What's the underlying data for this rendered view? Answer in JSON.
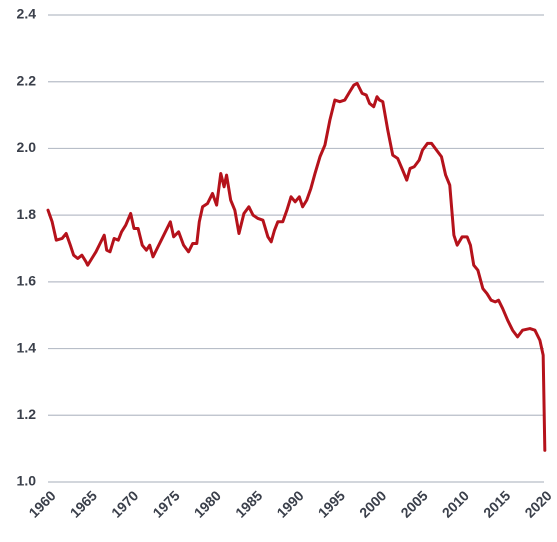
{
  "chart_data": {
    "type": "line",
    "color": "#b5121b",
    "grid": true,
    "xlim": [
      1960,
      2020
    ],
    "xticks": [
      1960,
      1965,
      1970,
      1975,
      1980,
      1985,
      1990,
      1995,
      2000,
      2005,
      2010,
      2015,
      2020
    ],
    "ylim": [
      1.0,
      2.4
    ],
    "yticks": [
      {
        "value": 1.0,
        "label": "1.0"
      },
      1.2,
      1.4,
      1.6,
      1.8,
      {
        "value": 2.0,
        "label": "2.0"
      },
      2.2,
      2.4
    ],
    "x": [
      1960,
      1960.5,
      1961,
      1961.7,
      1962.2,
      1962.7,
      1963.1,
      1963.6,
      1964.1,
      1964.6,
      1964.8,
      1965.3,
      1965.8,
      1966.3,
      1966.8,
      1967.1,
      1967.5,
      1968.0,
      1968.5,
      1968.9,
      1969.4,
      1970,
      1970.4,
      1970.9,
      1971.4,
      1971.9,
      1972.3,
      1972.7,
      1973.2,
      1973.7,
      1974.2,
      1974.8,
      1975.2,
      1975.8,
      1976.4,
      1977,
      1977.5,
      1978.0,
      1978.3,
      1978.7,
      1979.3,
      1979.9,
      1980.4,
      1980.9,
      1981.3,
      1981.6,
      1982.1,
      1982.6,
      1983.1,
      1983.7,
      1984.3,
      1984.8,
      1985.4,
      1986,
      1986.6,
      1987.0,
      1987.4,
      1987.8,
      1988.4,
      1988.9,
      1989.4,
      1989.9,
      1990.4,
      1990.8,
      1991.3,
      1991.8,
      1992.3,
      1992.9,
      1993.5,
      1994.1,
      1994.7,
      1995.3,
      1995.9,
      1996.5,
      1997.0,
      1997.4,
      1998,
      1998.5,
      1998.9,
      1999.4,
      1999.8,
      2000.1,
      2000.5,
      2001.1,
      2001.7,
      2002.3,
      2002.9,
      2003.4,
      2003.8,
      2004.3,
      2004.9,
      2005.3,
      2005.9,
      2006.4,
      2007,
      2007.6,
      2008.1,
      2008.6,
      2009.1,
      2009.5,
      2010.1,
      2010.7,
      2011.1,
      2011.5,
      2012.0,
      2012.6,
      2013.1,
      2013.6,
      2014.1,
      2014.5,
      2015,
      2015.6,
      2016.2,
      2016.8,
      2017.4,
      2018.3,
      2018.9,
      2019.5,
      2019.9,
      2020.1
    ],
    "values": [
      1.815,
      1.78,
      1.725,
      1.73,
      1.745,
      1.71,
      1.68,
      1.67,
      1.68,
      1.66,
      1.65,
      1.67,
      1.69,
      1.715,
      1.74,
      1.695,
      1.69,
      1.73,
      1.725,
      1.75,
      1.77,
      1.805,
      1.76,
      1.76,
      1.71,
      1.695,
      1.71,
      1.675,
      1.7,
      1.725,
      1.75,
      1.78,
      1.735,
      1.75,
      1.71,
      1.69,
      1.715,
      1.715,
      1.78,
      1.825,
      1.835,
      1.865,
      1.83,
      1.925,
      1.885,
      1.92,
      1.845,
      1.815,
      1.745,
      1.805,
      1.825,
      1.8,
      1.79,
      1.785,
      1.735,
      1.72,
      1.755,
      1.78,
      1.78,
      1.815,
      1.855,
      1.84,
      1.855,
      1.825,
      1.845,
      1.88,
      1.925,
      1.975,
      2.01,
      2.085,
      2.145,
      2.14,
      2.145,
      2.17,
      2.19,
      2.195,
      2.165,
      2.16,
      2.135,
      2.125,
      2.155,
      2.145,
      2.14,
      2.055,
      1.98,
      1.97,
      1.935,
      1.905,
      1.94,
      1.945,
      1.965,
      1.995,
      2.015,
      2.015,
      1.995,
      1.975,
      1.92,
      1.89,
      1.74,
      1.71,
      1.735,
      1.735,
      1.71,
      1.65,
      1.635,
      1.58,
      1.565,
      1.545,
      1.54,
      1.545,
      1.52,
      1.485,
      1.455,
      1.435,
      1.455,
      1.46,
      1.455,
      1.425,
      1.38,
      1.095
    ]
  }
}
